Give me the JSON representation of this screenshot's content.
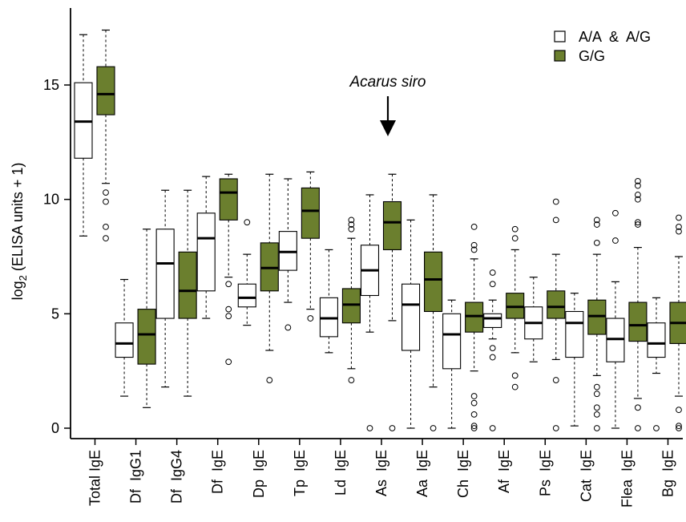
{
  "chart_data": {
    "type": "boxplot",
    "ylabel_main": "log",
    "ylabel_sub": "2",
    "ylabel_rest": " (ELISA units + 1)",
    "ylim": [
      0,
      18
    ],
    "yticks": [
      0,
      5,
      10,
      15
    ],
    "categories": [
      "Total IgE",
      "Df  IgG1",
      "Df  IgG4",
      "Df  IgE",
      "Dp  IgE",
      "Tp  IgE",
      "Ld  IgE",
      "As  IgE",
      "Aa  IgE",
      "Ch  IgE",
      "Af  IgE",
      "Ps  IgE",
      "Cat  IgE",
      "Flea  IgE",
      "Bg  IgE"
    ],
    "legend": {
      "position": "top-right",
      "items": [
        {
          "label": "A/A  &  A/G",
          "color": "#ffffff"
        },
        {
          "label": "G/G",
          "color": "#6b7f2e"
        }
      ]
    },
    "annotation": {
      "text": "Acarus siro",
      "category": "As  IgE"
    },
    "series": [
      {
        "name": "A/A  &  A/G",
        "color": "#ffffff",
        "boxes": [
          {
            "min": 8.4,
            "q1": 11.8,
            "median": 13.4,
            "q3": 15.1,
            "max": 17.2,
            "outliers": []
          },
          {
            "min": 1.4,
            "q1": 3.1,
            "median": 3.7,
            "q3": 4.6,
            "max": 6.5,
            "outliers": []
          },
          {
            "min": 1.8,
            "q1": 4.8,
            "median": 7.2,
            "q3": 8.7,
            "max": 10.4,
            "outliers": []
          },
          {
            "min": 4.8,
            "q1": 6.0,
            "median": 8.3,
            "q3": 9.4,
            "max": 11.0,
            "outliers": []
          },
          {
            "min": 4.5,
            "q1": 5.3,
            "median": 5.7,
            "q3": 6.3,
            "max": 7.6,
            "outliers": [
              9.0
            ]
          },
          {
            "min": 5.5,
            "q1": 6.9,
            "median": 7.7,
            "q3": 8.6,
            "max": 10.9,
            "outliers": [
              4.4
            ]
          },
          {
            "min": 3.3,
            "q1": 4.0,
            "median": 4.8,
            "q3": 5.7,
            "max": 7.8,
            "outliers": []
          },
          {
            "min": 4.2,
            "q1": 5.8,
            "median": 6.9,
            "q3": 8.0,
            "max": 10.2,
            "outliers": [
              0.0
            ]
          },
          {
            "min": 0.0,
            "q1": 3.4,
            "median": 5.4,
            "q3": 6.3,
            "max": 9.1,
            "outliers": []
          },
          {
            "min": 0.0,
            "q1": 2.6,
            "median": 4.1,
            "q3": 5.0,
            "max": 5.6,
            "outliers": []
          },
          {
            "min": 3.9,
            "q1": 4.4,
            "median": 4.8,
            "q3": 5.0,
            "max": 5.6,
            "outliers": [
              6.3,
              6.8,
              3.5,
              3.1,
              0.0
            ]
          },
          {
            "min": 2.9,
            "q1": 3.9,
            "median": 4.6,
            "q3": 5.3,
            "max": 6.6,
            "outliers": []
          },
          {
            "min": 0.1,
            "q1": 3.1,
            "median": 4.6,
            "q3": 5.1,
            "max": 5.9,
            "outliers": []
          },
          {
            "min": 0.0,
            "q1": 2.9,
            "median": 3.9,
            "q3": 4.8,
            "max": 6.4,
            "outliers": [
              9.4,
              8.2
            ]
          },
          {
            "min": 2.4,
            "q1": 3.1,
            "median": 3.7,
            "q3": 4.6,
            "max": 5.7,
            "outliers": [
              0.0
            ]
          }
        ]
      },
      {
        "name": "G/G",
        "color": "#6b7f2e",
        "boxes": [
          {
            "min": 10.7,
            "q1": 13.7,
            "median": 14.6,
            "q3": 15.8,
            "max": 17.4,
            "outliers": [
              10.3,
              9.9,
              8.8,
              8.3
            ]
          },
          {
            "min": 0.9,
            "q1": 2.8,
            "median": 4.1,
            "q3": 5.2,
            "max": 8.7,
            "outliers": []
          },
          {
            "min": 1.4,
            "q1": 4.8,
            "median": 6.0,
            "q3": 7.7,
            "max": 10.4,
            "outliers": []
          },
          {
            "min": 6.6,
            "q1": 9.1,
            "median": 10.3,
            "q3": 10.9,
            "max": 11.1,
            "outliers": [
              6.3,
              5.2,
              4.9,
              2.9
            ]
          },
          {
            "min": 3.4,
            "q1": 6.0,
            "median": 7.0,
            "q3": 8.1,
            "max": 11.1,
            "outliers": [
              2.1
            ]
          },
          {
            "min": 5.2,
            "q1": 8.3,
            "median": 9.5,
            "q3": 10.5,
            "max": 11.2,
            "outliers": [
              4.8
            ]
          },
          {
            "min": 2.6,
            "q1": 4.6,
            "median": 5.4,
            "q3": 6.1,
            "max": 8.3,
            "outliers": [
              9.1,
              8.9,
              8.7,
              2.1
            ]
          },
          {
            "min": 4.7,
            "q1": 7.8,
            "median": 9.0,
            "q3": 9.9,
            "max": 11.1,
            "outliers": [
              0.0
            ]
          },
          {
            "min": 1.8,
            "q1": 5.1,
            "median": 6.5,
            "q3": 7.7,
            "max": 10.2,
            "outliers": [
              0.0
            ]
          },
          {
            "min": 2.5,
            "q1": 4.2,
            "median": 4.9,
            "q3": 5.5,
            "max": 7.4,
            "outliers": [
              8.8,
              8.0,
              7.8,
              1.4,
              1.1,
              0.6,
              0.1,
              0.0
            ]
          },
          {
            "min": 3.3,
            "q1": 4.8,
            "median": 5.3,
            "q3": 5.9,
            "max": 7.8,
            "outliers": [
              8.7,
              8.3,
              2.3,
              1.8
            ]
          },
          {
            "min": 3.0,
            "q1": 4.8,
            "median": 5.3,
            "q3": 6.0,
            "max": 7.6,
            "outliers": [
              9.9,
              9.1,
              2.1,
              0.0
            ]
          },
          {
            "min": 2.3,
            "q1": 4.1,
            "median": 4.9,
            "q3": 5.6,
            "max": 7.6,
            "outliers": [
              9.1,
              8.9,
              8.1,
              1.8,
              1.5,
              0.9,
              0.6,
              0.0
            ]
          },
          {
            "min": 1.3,
            "q1": 3.8,
            "median": 4.5,
            "q3": 5.5,
            "max": 7.9,
            "outliers": [
              10.8,
              10.6,
              10.2,
              10.0,
              9.0,
              8.9,
              0.9,
              0.0
            ]
          },
          {
            "min": 1.4,
            "q1": 3.7,
            "median": 4.6,
            "q3": 5.5,
            "max": 7.5,
            "outliers": [
              9.2,
              8.8,
              8.6,
              0.8,
              0.1,
              0.0
            ]
          }
        ]
      }
    ]
  }
}
